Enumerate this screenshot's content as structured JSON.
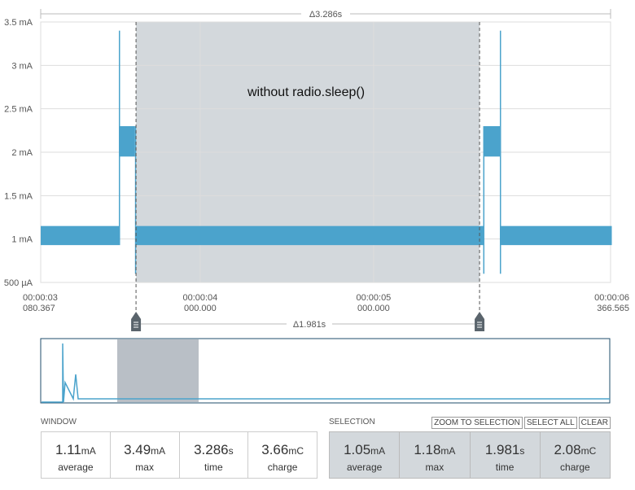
{
  "chart_data": {
    "type": "band",
    "annotation": "without radio.sleep()",
    "window_delta": "Δ3.286s",
    "selection_delta": "Δ1.981s",
    "x": [
      3.080367,
      3.531,
      3.534,
      3.624,
      3.628,
      5.632,
      5.636,
      5.728,
      5.732,
      6.366565
    ],
    "series": [
      {
        "color": "#4ba3cc",
        "values": [
          0.93,
          0.93,
          1.95,
          0.6,
          0.93,
          0.6,
          1.95,
          0.6,
          0.93,
          0.93
        ]
      },
      {
        "color": "#4ba3cc",
        "values": [
          1.15,
          3.4,
          2.3,
          2.3,
          1.15,
          2.3,
          2.3,
          3.4,
          1.15,
          1.15
        ]
      }
    ],
    "selection": [
      3.63,
      5.611
    ],
    "xlim": [
      3.080367,
      6.366565
    ],
    "xticks": [
      {
        "value": 3.080367,
        "label": "00:00:03\n080.367"
      },
      {
        "value": 4,
        "label": "00:00:04\n000.000"
      },
      {
        "value": 5,
        "label": "00:00:05\n000.000"
      },
      {
        "value": 6.366565,
        "label": "00:00:06\n366.565"
      }
    ],
    "ylim": [
      0.5,
      3.5
    ],
    "yticks": [
      {
        "value": 0.5,
        "label": "500 µA"
      },
      {
        "value": 1,
        "label": "1 mA"
      },
      {
        "value": 1.5,
        "label": "1.5 mA"
      },
      {
        "value": 2,
        "label": "2 mA"
      },
      {
        "value": 2.5,
        "label": "2.5 mA"
      },
      {
        "value": 3,
        "label": "3 mA"
      },
      {
        "value": 3.5,
        "label": "3.5 mA"
      }
    ],
    "grid": true
  },
  "window": {
    "title": "WINDOW",
    "stats": [
      {
        "value": "1.11",
        "unit": "mA",
        "label": "average"
      },
      {
        "value": "3.49",
        "unit": "mA",
        "label": "max"
      },
      {
        "value": "3.286",
        "unit": "s",
        "label": "time"
      },
      {
        "value": "3.66",
        "unit": "mC",
        "label": "charge"
      }
    ]
  },
  "selection": {
    "title": "SELECTION",
    "buttons": [
      "ZOOM TO SELECTION",
      "SELECT ALL",
      "CLEAR"
    ],
    "stats": [
      {
        "value": "1.05",
        "unit": "mA",
        "label": "average"
      },
      {
        "value": "1.18",
        "unit": "mA",
        "label": "max"
      },
      {
        "value": "1.981",
        "unit": "s",
        "label": "time"
      },
      {
        "value": "2.08",
        "unit": "mC",
        "label": "charge"
      }
    ]
  }
}
